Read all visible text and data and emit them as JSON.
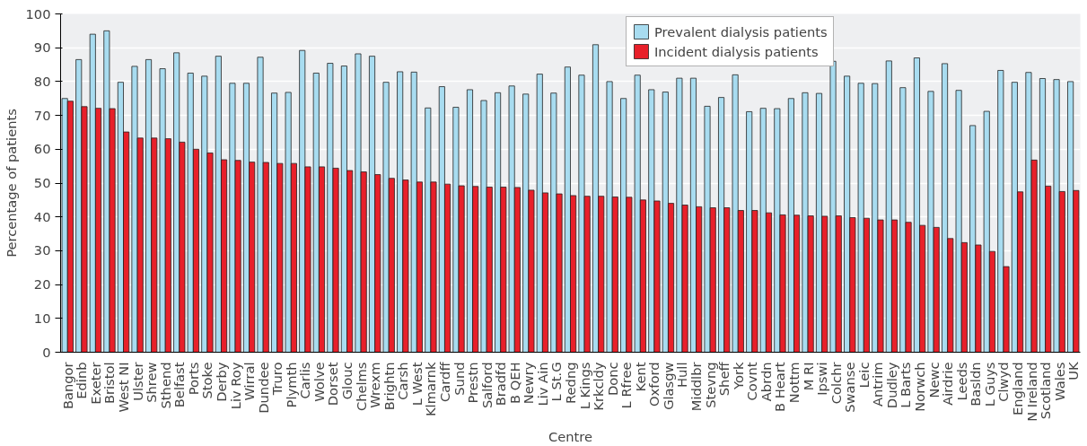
{
  "chart_data": {
    "type": "bar",
    "xlabel": "Centre",
    "ylabel": "Percentage of patients",
    "categories": [
      "Bangor",
      "Edinb",
      "Exeter",
      "Bristol",
      "West NI",
      "Ulster",
      "Shrew",
      "Sthend",
      "Belfast",
      "Ports",
      "Stoke",
      "Derby",
      "Liv Roy",
      "Wirral",
      "Dundee",
      "Truro",
      "Plymth",
      "Carlis",
      "Wolve",
      "Dorset",
      "Glouc",
      "Chelms",
      "Wrexm",
      "Brightn",
      "Carsh",
      "L West",
      "Klmarnk",
      "Cardff",
      "Sund",
      "Prestn",
      "Salford",
      "Bradfd",
      "B QEH",
      "Newry",
      "Liv Ain",
      "L St.G",
      "Redng",
      "L Kings",
      "Krkcldy",
      "Donc",
      "L Rfree",
      "Kent",
      "Oxford",
      "Glasgw",
      "Hull",
      "Middlbr",
      "Stevng",
      "Sheff",
      "York",
      "Covnt",
      "Abrdn",
      "B Heart",
      "Nottm",
      "M RI",
      "Ipswi",
      "Colchr",
      "Swanse",
      "Leic",
      "Antrim",
      "Dudley",
      "L Barts",
      "Norwch",
      "Newc",
      "Airdrie",
      "Leeds",
      "Basldn",
      "L Guys",
      "Clwyd",
      "England",
      "N Ireland",
      "Scotland",
      "Wales",
      "UK"
    ],
    "series": [
      {
        "name": "Prevalent dialysis patients",
        "color": "#a8dcf0",
        "values": [
          75,
          86.5,
          94,
          95,
          79.8,
          84.5,
          86.5,
          83.8,
          88.5,
          82.5,
          81.6,
          87.5,
          79.5,
          79.5,
          87.2,
          76.6,
          76.8,
          89.2,
          82.5,
          85.4,
          84.6,
          88.2,
          87.5,
          79.8,
          82.9,
          82.8,
          72.2,
          78.5,
          72.4,
          77.6,
          74.4,
          76.7,
          78.7,
          76.3,
          82.2,
          76.6,
          84.3,
          81.9,
          90.9,
          80,
          75,
          81.9,
          77.6,
          76.9,
          81,
          81,
          72.7,
          75.3,
          82,
          71.1,
          72.1,
          72,
          75,
          76.7,
          76.5,
          86,
          81.6,
          79.5,
          79.4,
          86.1,
          78.2,
          87,
          77.1,
          85.3,
          77.4,
          67,
          71.2,
          83.3,
          79.8,
          82.7,
          80.9,
          80.6,
          80
        ]
      },
      {
        "name": "Incident dialysis patients",
        "color": "#e8202a",
        "values": [
          74.2,
          72.6,
          72.1,
          72,
          65.1,
          63.3,
          63.3,
          63.1,
          62.1,
          60,
          58.9,
          56.9,
          56.7,
          56.2,
          56.1,
          55.8,
          55.8,
          54.8,
          54.8,
          54.4,
          53.7,
          53.3,
          52.5,
          51.4,
          50.9,
          50.3,
          50.3,
          49.7,
          49.2,
          49,
          48.8,
          48.8,
          48.7,
          47.9,
          47.1,
          46.8,
          46.3,
          46.1,
          46.1,
          45.9,
          45.8,
          45,
          44.7,
          44,
          43.5,
          43,
          42.7,
          42.7,
          41.9,
          41.9,
          41.2,
          40.6,
          40.5,
          40.3,
          40.2,
          40.3,
          39.8,
          39.6,
          39.1,
          39.1,
          38.4,
          37.5,
          36.9,
          33.6,
          32.4,
          31.7,
          29.8,
          25.3,
          47.4,
          56.8,
          49.1,
          47.5,
          47.8
        ]
      }
    ],
    "ylim": [
      0,
      100
    ],
    "yticks": [
      0,
      10,
      20,
      30,
      40,
      50,
      60,
      70,
      80,
      90,
      100
    ],
    "grid": "y",
    "legend": "top right"
  }
}
